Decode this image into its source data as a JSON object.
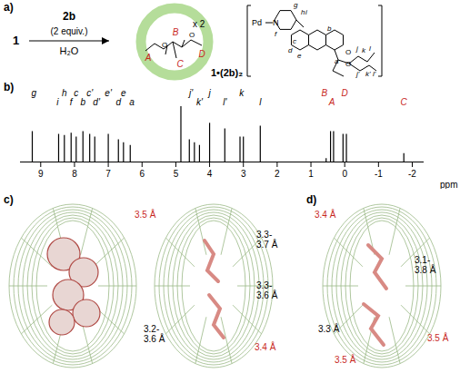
{
  "figure": {
    "a": {
      "label": "a)",
      "reactant": "1",
      "reagent": "2b",
      "reagent_note": "(2 equiv.)",
      "solvent": "H₂O",
      "multiplier": "x 2",
      "product": "1•(2b)₂",
      "guest_labels": [
        "A",
        "B",
        "C",
        "D"
      ],
      "metal": "Pd",
      "nitrogen": "N",
      "oxygen": "O",
      "ligand_labels": [
        "g",
        "h",
        "f",
        "i",
        "e",
        "d",
        "c",
        "b",
        "a",
        "l",
        "k",
        "j",
        "l'",
        "k'",
        "j'"
      ]
    },
    "c": {
      "label": "c)",
      "distances": [
        {
          "text": "3.5 Å",
          "highlight": true
        },
        {
          "text": "3.3-\n3.7 Å",
          "highlight": false
        },
        {
          "text": "3.3-\n3.6 Å",
          "highlight": false
        },
        {
          "text": "3.2-\n3.6 Å",
          "highlight": false
        },
        {
          "text": "3.4 Å",
          "highlight": true
        }
      ]
    },
    "d": {
      "label": "d)",
      "distances": [
        {
          "text": "3.4 Å",
          "highlight": true
        },
        {
          "text": "3.1-\n3.8 Å",
          "highlight": false
        },
        {
          "text": "3.5 Å",
          "highlight": true
        },
        {
          "text": "3.3 Å",
          "highlight": false
        },
        {
          "text": "3.5 Å",
          "highlight": true
        }
      ]
    }
  },
  "chart_data": {
    "type": "spectrum",
    "title": "b)",
    "x_label": "ppm",
    "xlim": [
      9.6,
      -2.35
    ],
    "xticks": [
      9,
      8,
      7,
      6,
      5,
      4,
      3,
      2,
      1,
      0,
      -1,
      -2
    ],
    "ylim": [
      0,
      105
    ],
    "tick_labels": "x",
    "peaks": [
      {
        "ppm": 9.25,
        "intensity": 55
      },
      {
        "ppm": 8.47,
        "intensity": 50
      },
      {
        "ppm": 8.3,
        "intensity": 48
      },
      {
        "ppm": 8.1,
        "intensity": 52
      },
      {
        "ppm": 7.95,
        "intensity": 45
      },
      {
        "ppm": 7.75,
        "intensity": 55
      },
      {
        "ppm": 7.55,
        "intensity": 50
      },
      {
        "ppm": 7.4,
        "intensity": 45
      },
      {
        "ppm": 7.0,
        "intensity": 50
      },
      {
        "ppm": 6.7,
        "intensity": 40
      },
      {
        "ppm": 6.55,
        "intensity": 35
      },
      {
        "ppm": 6.35,
        "intensity": 30
      },
      {
        "ppm": 4.85,
        "intensity": 100
      },
      {
        "ppm": 4.6,
        "intensity": 40
      },
      {
        "ppm": 4.45,
        "intensity": 35
      },
      {
        "ppm": 4.3,
        "intensity": 30
      },
      {
        "ppm": 4.0,
        "intensity": 70
      },
      {
        "ppm": 3.55,
        "intensity": 60
      },
      {
        "ppm": 3.1,
        "intensity": 45
      },
      {
        "ppm": 3.0,
        "intensity": 45
      },
      {
        "ppm": 2.5,
        "intensity": 65
      },
      {
        "ppm": 0.55,
        "intensity": 6
      },
      {
        "ppm": 0.42,
        "intensity": 55
      },
      {
        "ppm": 0.33,
        "intensity": 55
      },
      {
        "ppm": 0.05,
        "intensity": 50
      },
      {
        "ppm": -0.05,
        "intensity": 50
      },
      {
        "ppm": -1.75,
        "intensity": 15
      }
    ],
    "peak_labels": [
      {
        "text": "g",
        "ppm": 9.2
      },
      {
        "text": "i",
        "ppm": 8.5
      },
      {
        "text": "h",
        "ppm": 8.3
      },
      {
        "text": "f",
        "ppm": 8.1
      },
      {
        "text": "c",
        "ppm": 7.95
      },
      {
        "text": "b",
        "ppm": 7.75
      },
      {
        "text": "c'",
        "ppm": 7.55
      },
      {
        "text": "d'",
        "ppm": 7.35
      },
      {
        "text": "e'",
        "ppm": 7.0
      },
      {
        "text": "d",
        "ppm": 6.7
      },
      {
        "text": "e",
        "ppm": 6.55
      },
      {
        "text": "a",
        "ppm": 6.3
      },
      {
        "text": "j'",
        "ppm": 4.55
      },
      {
        "text": "k'",
        "ppm": 4.3
      },
      {
        "text": "j",
        "ppm": 4.0
      },
      {
        "text": "l'",
        "ppm": 3.55
      },
      {
        "text": "k",
        "ppm": 3.05
      },
      {
        "text": "l",
        "ppm": 2.5
      },
      {
        "text": "B",
        "ppm": 0.6,
        "color": "#c8281e"
      },
      {
        "text": "A",
        "ppm": 0.38,
        "color": "#c8281e"
      },
      {
        "text": "D",
        "ppm": 0.0,
        "color": "#c8281e"
      },
      {
        "text": "C",
        "ppm": -1.75,
        "color": "#c8281e"
      }
    ]
  }
}
